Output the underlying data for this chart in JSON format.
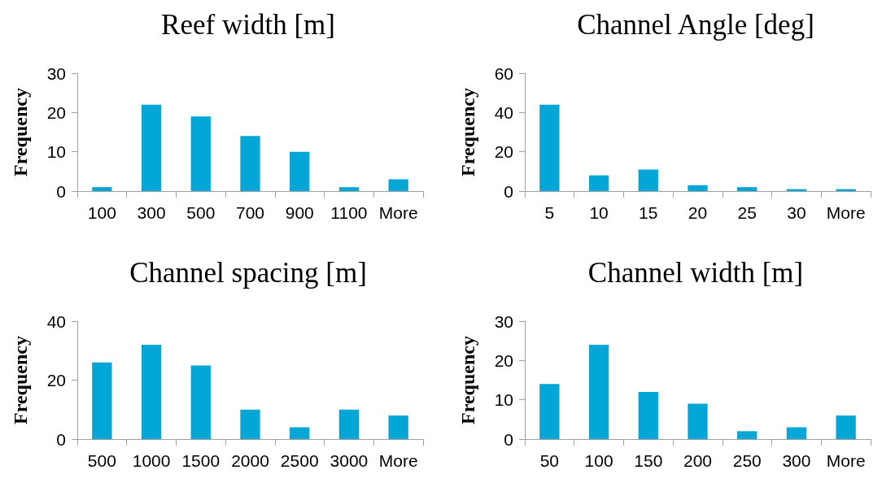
{
  "chart_data": [
    {
      "type": "bar",
      "title": "Reef width [m]",
      "ylabel": "Frequency",
      "categories": [
        "100",
        "300",
        "500",
        "700",
        "900",
        "1100",
        "More"
      ],
      "values": [
        1,
        22,
        19,
        14,
        10,
        1,
        3
      ],
      "color": "#00a6d6",
      "ylim": [
        0,
        30
      ],
      "yticks": [
        0,
        10,
        20,
        30
      ],
      "grid": false
    },
    {
      "type": "bar",
      "title": "Channel Angle [deg]",
      "ylabel": "Frequency",
      "categories": [
        "5",
        "10",
        "15",
        "20",
        "25",
        "30",
        "More"
      ],
      "values": [
        44,
        8,
        11,
        3,
        2,
        1,
        1
      ],
      "color": "#00a6d6",
      "ylim": [
        0,
        60
      ],
      "yticks": [
        0,
        20,
        40,
        60
      ],
      "grid": false
    },
    {
      "type": "bar",
      "title": "Channel spacing [m]",
      "ylabel": "Frequency",
      "categories": [
        "500",
        "1000",
        "1500",
        "2000",
        "2500",
        "3000",
        "More"
      ],
      "values": [
        26,
        32,
        25,
        10,
        4,
        10,
        8
      ],
      "color": "#00a6d6",
      "ylim": [
        0,
        40
      ],
      "yticks": [
        0,
        20,
        40
      ],
      "grid": false
    },
    {
      "type": "bar",
      "title": "Channel width [m]",
      "ylabel": "Frequency",
      "categories": [
        "50",
        "100",
        "150",
        "200",
        "250",
        "300",
        "More"
      ],
      "values": [
        14,
        24,
        12,
        9,
        2,
        3,
        6
      ],
      "color": "#00a6d6",
      "ylim": [
        0,
        30
      ],
      "yticks": [
        0,
        10,
        20,
        30
      ],
      "grid": false
    }
  ]
}
